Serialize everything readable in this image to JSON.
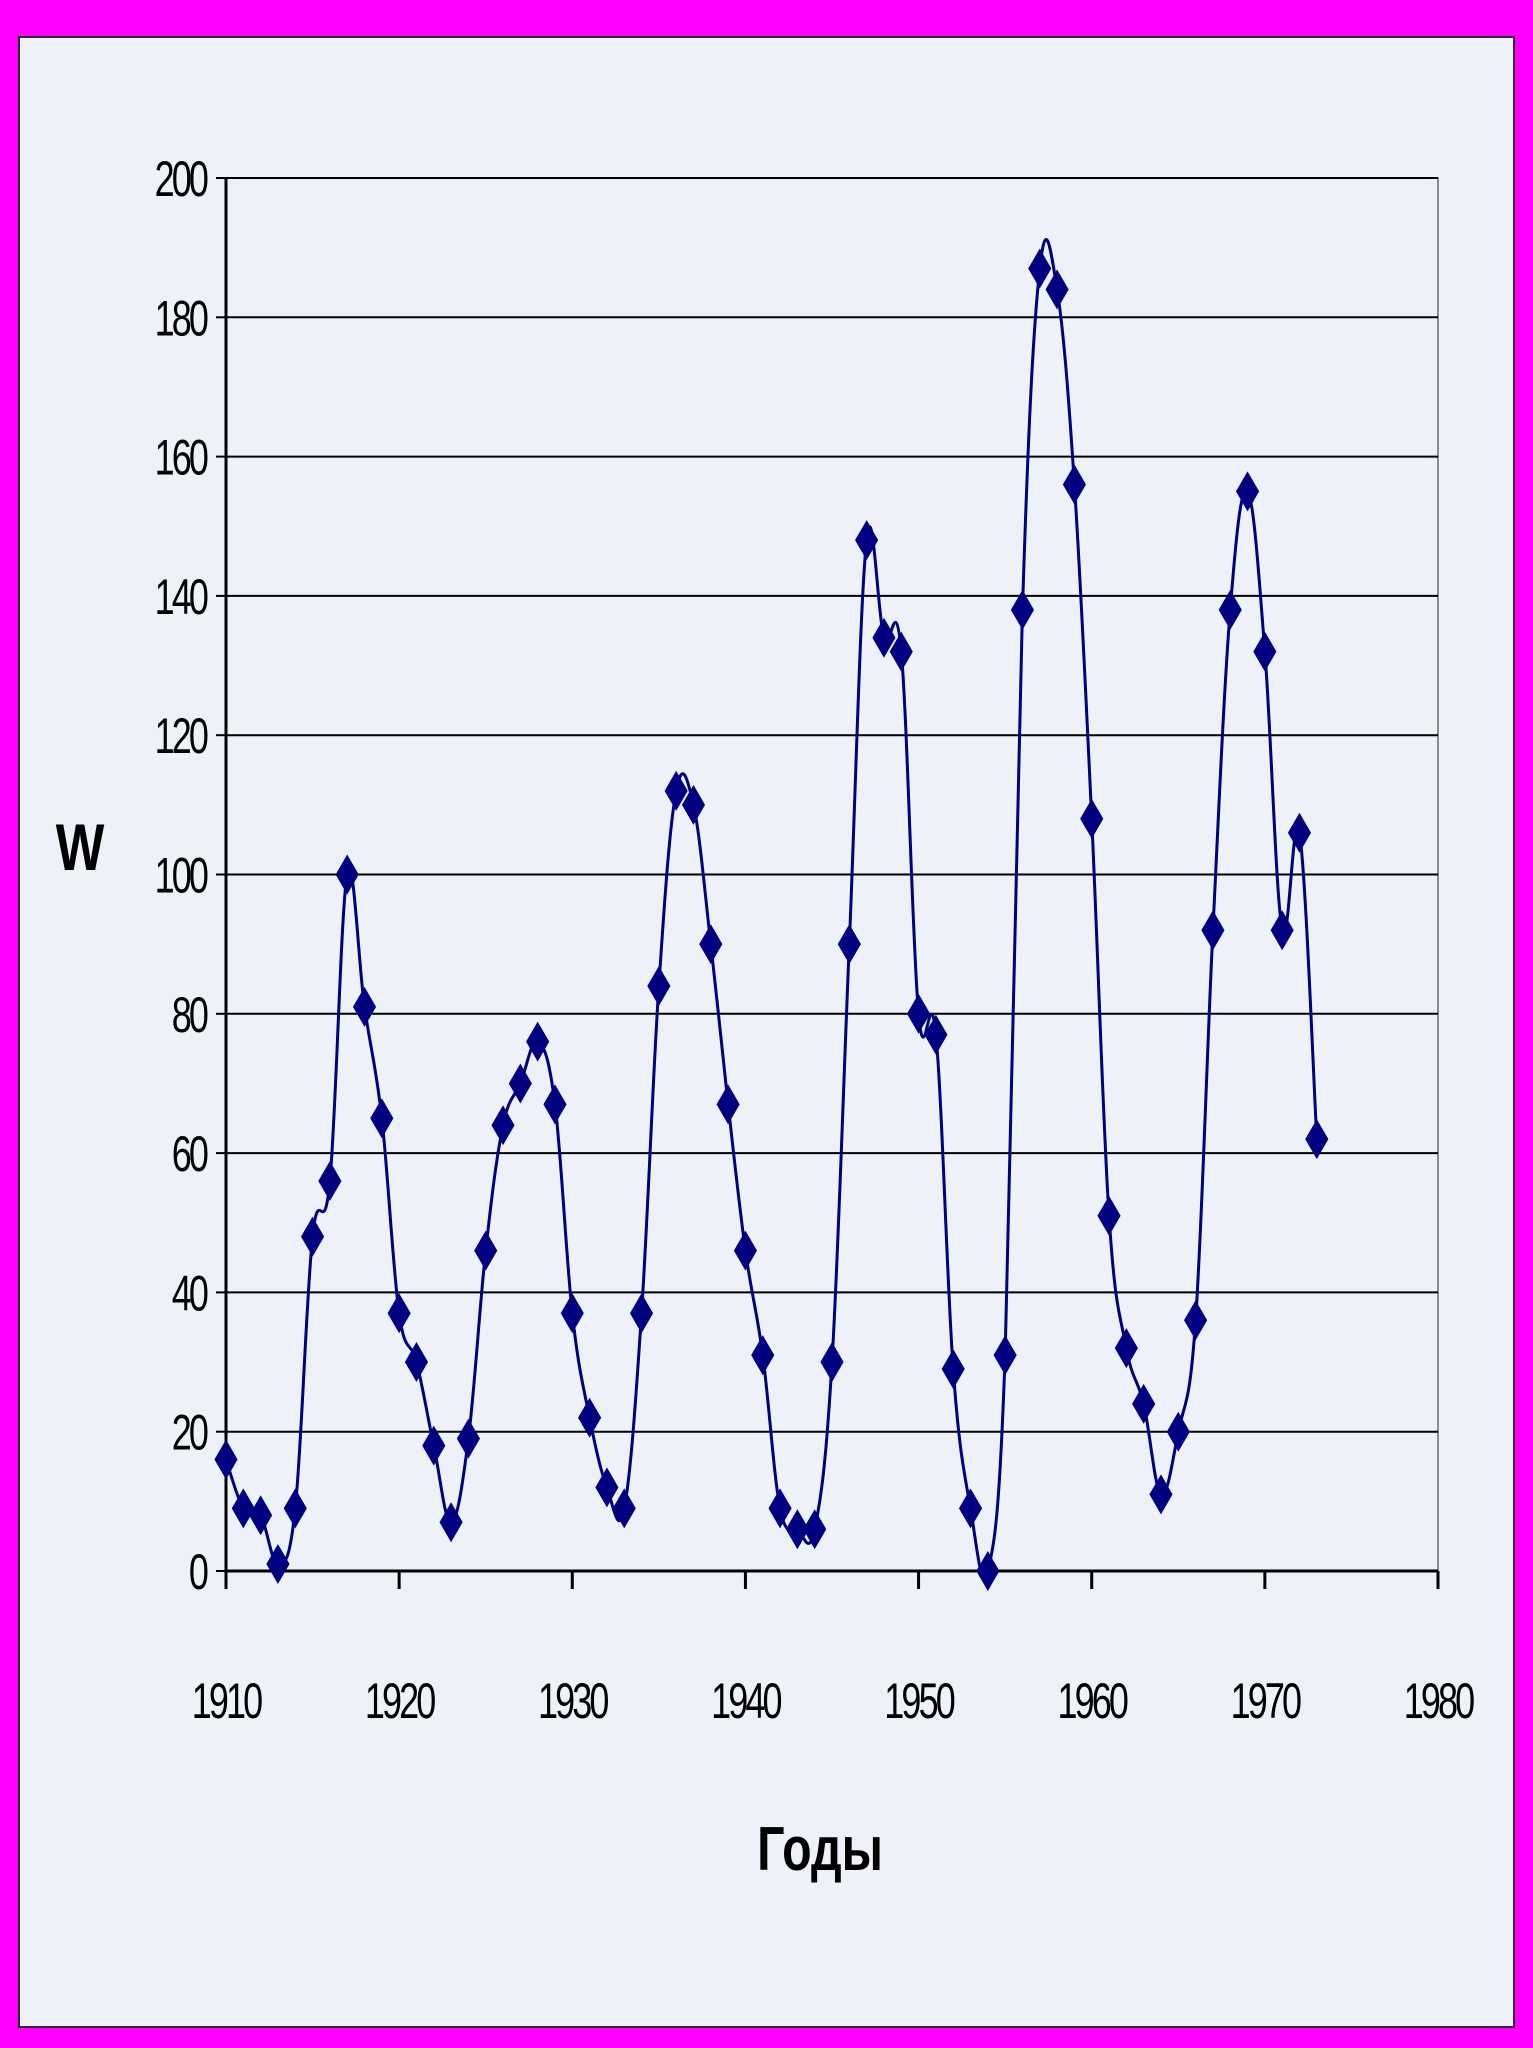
{
  "colors": {
    "border": "#ff00ff",
    "background": "#eef2f8",
    "series": "#000080",
    "grid": "#000000"
  },
  "chart_data": {
    "type": "line",
    "xlabel": "Годы",
    "ylabel": "W",
    "xlim": [
      1910,
      1980
    ],
    "ylim": [
      0,
      200
    ],
    "x_ticks": [
      "1910",
      "1920",
      "1930",
      "1940",
      "1950",
      "1960",
      "1970",
      "1980"
    ],
    "y_ticks": [
      "0",
      "20",
      "40",
      "60",
      "80",
      "100",
      "120",
      "140",
      "160",
      "180",
      "200"
    ],
    "grid": true,
    "legend": "none",
    "marker": "diamond",
    "series": [
      {
        "x": [
          1910,
          1911,
          1912,
          1913,
          1914,
          1915,
          1916,
          1917,
          1918,
          1919,
          1920,
          1921,
          1922,
          1923,
          1924,
          1925,
          1926,
          1927,
          1928,
          1929,
          1930,
          1931,
          1932,
          1933,
          1934,
          1935,
          1936,
          1937,
          1938,
          1939,
          1940,
          1941,
          1942,
          1943,
          1944,
          1945,
          1946,
          1947,
          1948,
          1949,
          1950,
          1951,
          1952,
          1953,
          1954,
          1955,
          1956,
          1957,
          1958,
          1959,
          1960,
          1961,
          1962,
          1963,
          1964,
          1965,
          1966,
          1967,
          1968,
          1969,
          1970,
          1971,
          1972,
          1973
        ],
        "y": [
          16,
          9,
          8,
          1,
          9,
          48,
          56,
          100,
          81,
          65,
          37,
          30,
          18,
          7,
          19,
          46,
          64,
          70,
          76,
          67,
          37,
          22,
          12,
          9,
          37,
          84,
          112,
          110,
          90,
          67,
          46,
          31,
          9,
          6,
          6,
          30,
          90,
          148,
          134,
          132,
          80,
          77,
          29,
          9,
          0,
          31,
          138,
          187,
          184,
          156,
          108,
          51,
          32,
          24,
          11,
          20,
          36,
          92,
          138,
          155,
          132,
          92,
          106,
          62
        ]
      }
    ]
  }
}
